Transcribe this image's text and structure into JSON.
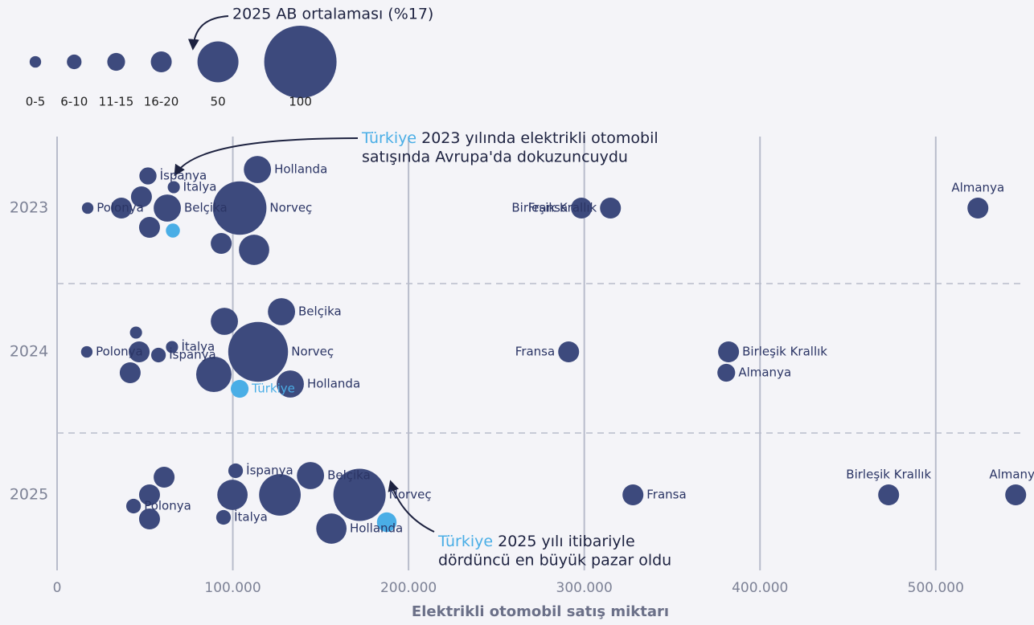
{
  "chart_data": {
    "type": "bubble",
    "x_label": "Elektrikli otomobil satış miktarı",
    "categories": [
      "2023",
      "2024",
      "2025"
    ],
    "xlim": [
      0,
      555000
    ],
    "xticks": [
      0,
      {
        "value": 100000,
        "label": "100.000"
      },
      {
        "value": 200000,
        "label": "200.000"
      },
      {
        "value": 300000,
        "label": "300.000"
      },
      {
        "value": 400000,
        "label": "400.000"
      },
      {
        "value": 500000,
        "label": "500.000"
      }
    ],
    "grid": true,
    "color": "#3d4a7d",
    "highlight": "Türkiye",
    "highlight_color": "#4aaee6",
    "legend_labels": [
      "0-5",
      "6-10",
      "11-15",
      "16-20",
      "50",
      "100"
    ],
    "legend_sizes": [
      3,
      8,
      13,
      18,
      50,
      100
    ],
    "legend_note": "2025 AB ortalaması (%17)",
    "annotations": [
      {
        "country": "Türkiye",
        "lines": [
          " 2023 yılında elektrikli otomobil",
          "satışında Avrupa'da dokuzuncuydu"
        ]
      },
      {
        "country": "Türkiye",
        "lines": [
          " 2025 yılı itibariyle",
          "dördüncü en büyük pazar oldu"
        ]
      }
    ],
    "series": [
      {
        "labels": [
          "Polonya",
          null,
          null,
          null,
          null,
          "İspanya",
          "İtalya",
          null,
          null,
          "Norveç",
          "Hollanda",
          "Fransa",
          "Birleşik Krallık",
          "Almanya",
          "Belçika"
        ],
        "countries": [
          "Polonya",
          null,
          null,
          "Türkiye",
          null,
          "İspanya",
          "İtalya",
          null,
          null,
          "Norveç",
          "Hollanda",
          "Fransa",
          "Birleşik Krallık",
          "Almanya",
          "Belçika"
        ],
        "x": [
          17400,
          36600,
          52600,
          65900,
          48000,
          51700,
          66400,
          93400,
          112100,
          103900,
          114000,
          298400,
          314900,
          524000,
          62700
        ],
        "sizes": [
          3,
          18,
          18,
          7,
          18,
          12,
          4,
          18,
          33,
          70,
          28,
          18,
          18,
          18,
          28
        ]
      },
      {
        "labels": [
          "Polonya",
          null,
          null,
          "İspanya",
          "İtalya",
          null,
          "Türkiye",
          "Hollanda",
          "Norveç",
          null,
          "Belçika",
          null,
          "Fransa",
          "Almanya",
          "Birleşik Krallık"
        ],
        "countries": [
          "Polonya",
          null,
          null,
          "İspanya",
          "İtalya",
          null,
          "Türkiye",
          "Hollanda",
          "Norveç",
          null,
          "Belçika",
          null,
          "Fransa",
          "Almanya",
          "Birleşik Krallık"
        ],
        "x": [
          16900,
          46700,
          41600,
          57700,
          65400,
          44900,
          103900,
          132700,
          114400,
          95200,
          127700,
          89200,
          291100,
          380800,
          382100
        ],
        "sizes": [
          3,
          18,
          18,
          8,
          4,
          4,
          13,
          28,
          80,
          28,
          28,
          41,
          18,
          13,
          18
        ]
      },
      {
        "labels": [
          "Polonya",
          null,
          null,
          null,
          "İtalya",
          null,
          "İspanya",
          null,
          "Belçika",
          "Hollanda",
          "Norveç",
          null,
          "Fransa",
          "Birleşik Krallık",
          "Almanya"
        ],
        "countries": [
          "Polonya",
          null,
          null,
          null,
          "İtalya",
          null,
          "İspanya",
          null,
          "Belçika",
          "Hollanda",
          "Norveç",
          "Türkiye",
          "Fransa",
          "Birleşik Krallık",
          "Almanya"
        ],
        "x": [
          43500,
          52600,
          52600,
          60900,
          94700,
          99800,
          101600,
          126800,
          144200,
          156100,
          172100,
          187600,
          327700,
          473200,
          545500
        ],
        "sizes": [
          8,
          18,
          18,
          18,
          8,
          33,
          8,
          51,
          28,
          33,
          68,
          16,
          18,
          18,
          18
        ]
      }
    ]
  }
}
